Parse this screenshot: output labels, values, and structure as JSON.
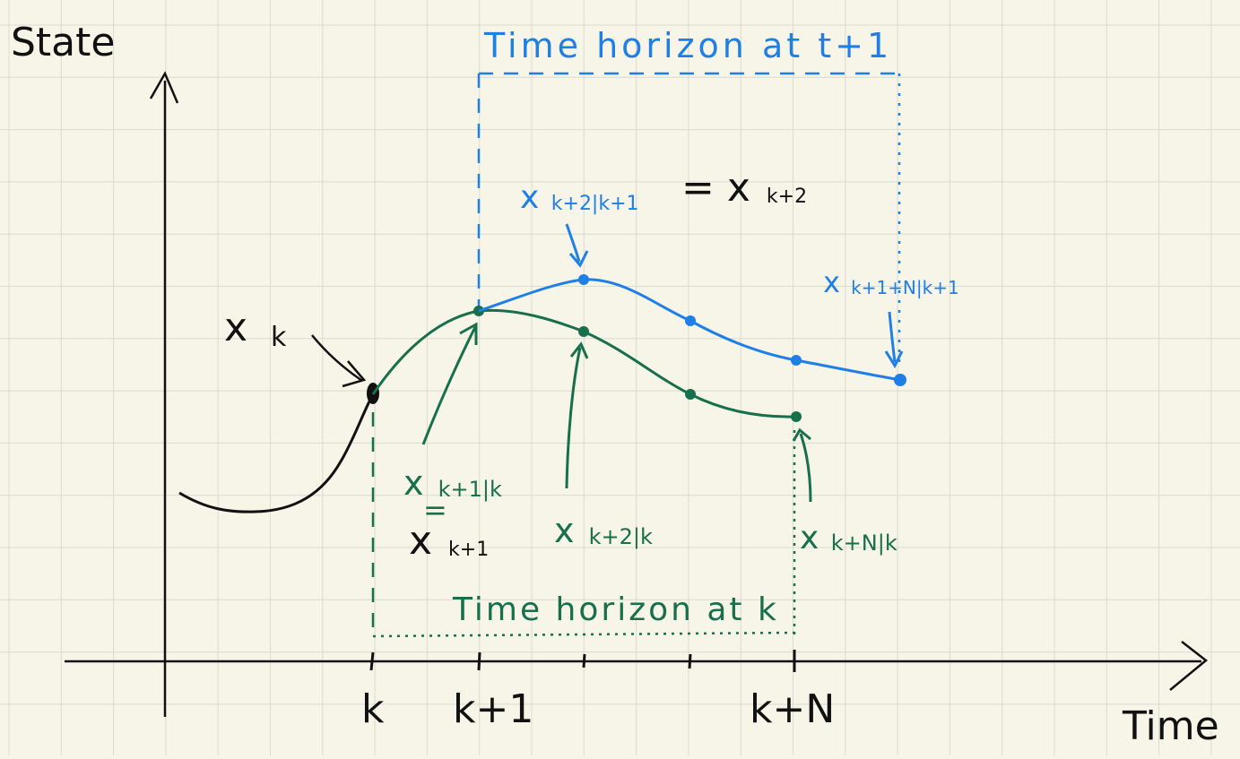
{
  "colors": {
    "background": "#f7f4e8",
    "grid": "#d9dccf",
    "black": "#111111",
    "green": "#17704b",
    "blue": "#1e7fe6"
  },
  "axes": {
    "y_label": "State",
    "x_label": "Time",
    "ticks": [
      "k",
      "k+1",
      "",
      "",
      "k+N"
    ]
  },
  "labels": {
    "x_k": "x",
    "x_k_sub": "k",
    "green_1_main": "x",
    "green_1_sub": "k+1|k",
    "equals_mark": "=",
    "x_k1_main": "x",
    "x_k1_sub": "k+1",
    "green_2_main": "x",
    "green_2_sub": "k+2|k",
    "green_N_main": "x",
    "green_N_sub": "k+N|k",
    "blue_2_main": "x",
    "blue_2_sub": "k+2|k+1",
    "equals_x_k2": "= x",
    "equals_x_k2_sub": "k+2",
    "blue_N_main": "x",
    "blue_N_sub": "k+1+N|k+1"
  },
  "horizons": {
    "green": "Time horizon at k",
    "blue": "Time horizon at t+1"
  }
}
